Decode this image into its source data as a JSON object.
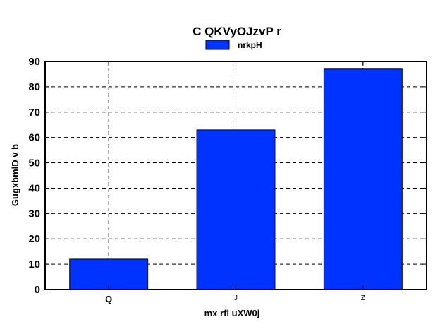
{
  "chart_data": {
    "type": "bar",
    "title": "C QKVyOJzvP r",
    "xlabel": "mx rfi uXW0j",
    "ylabel": "GugxbmiD v b",
    "categories": [
      "Q",
      "J",
      "Z"
    ],
    "series": [
      {
        "name": "nrkpH",
        "values": [
          12,
          63,
          87
        ],
        "color": "#0033ff"
      }
    ],
    "ylim": [
      0,
      90
    ],
    "yticks": [
      0,
      10,
      20,
      30,
      40,
      50,
      60,
      70,
      80,
      90
    ],
    "grid": true,
    "grid_style": "dashed",
    "legend_position": "top-center"
  }
}
